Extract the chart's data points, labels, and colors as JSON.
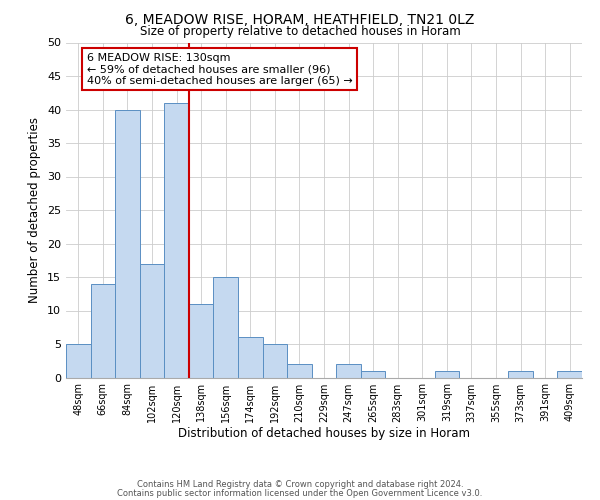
{
  "title": "6, MEADOW RISE, HORAM, HEATHFIELD, TN21 0LZ",
  "subtitle": "Size of property relative to detached houses in Horam",
  "xlabel": "Distribution of detached houses by size in Horam",
  "ylabel": "Number of detached properties",
  "bar_labels": [
    "48sqm",
    "66sqm",
    "84sqm",
    "102sqm",
    "120sqm",
    "138sqm",
    "156sqm",
    "174sqm",
    "192sqm",
    "210sqm",
    "229sqm",
    "247sqm",
    "265sqm",
    "283sqm",
    "301sqm",
    "319sqm",
    "337sqm",
    "355sqm",
    "373sqm",
    "391sqm",
    "409sqm"
  ],
  "bar_values": [
    5,
    14,
    40,
    17,
    41,
    11,
    15,
    6,
    5,
    2,
    0,
    2,
    1,
    0,
    0,
    1,
    0,
    0,
    1,
    0,
    1
  ],
  "bar_color": "#c5d9f0",
  "bar_edge_color": "#5a8fc3",
  "ylim": [
    0,
    50
  ],
  "yticks": [
    0,
    5,
    10,
    15,
    20,
    25,
    30,
    35,
    40,
    45,
    50
  ],
  "property_line_color": "#cc0000",
  "annotation_text": "6 MEADOW RISE: 130sqm\n← 59% of detached houses are smaller (96)\n40% of semi-detached houses are larger (65) →",
  "annotation_box_color": "#ffffff",
  "annotation_box_edge_color": "#cc0000",
  "footer_line1": "Contains HM Land Registry data © Crown copyright and database right 2024.",
  "footer_line2": "Contains public sector information licensed under the Open Government Licence v3.0.",
  "background_color": "#ffffff",
  "grid_color": "#cccccc"
}
